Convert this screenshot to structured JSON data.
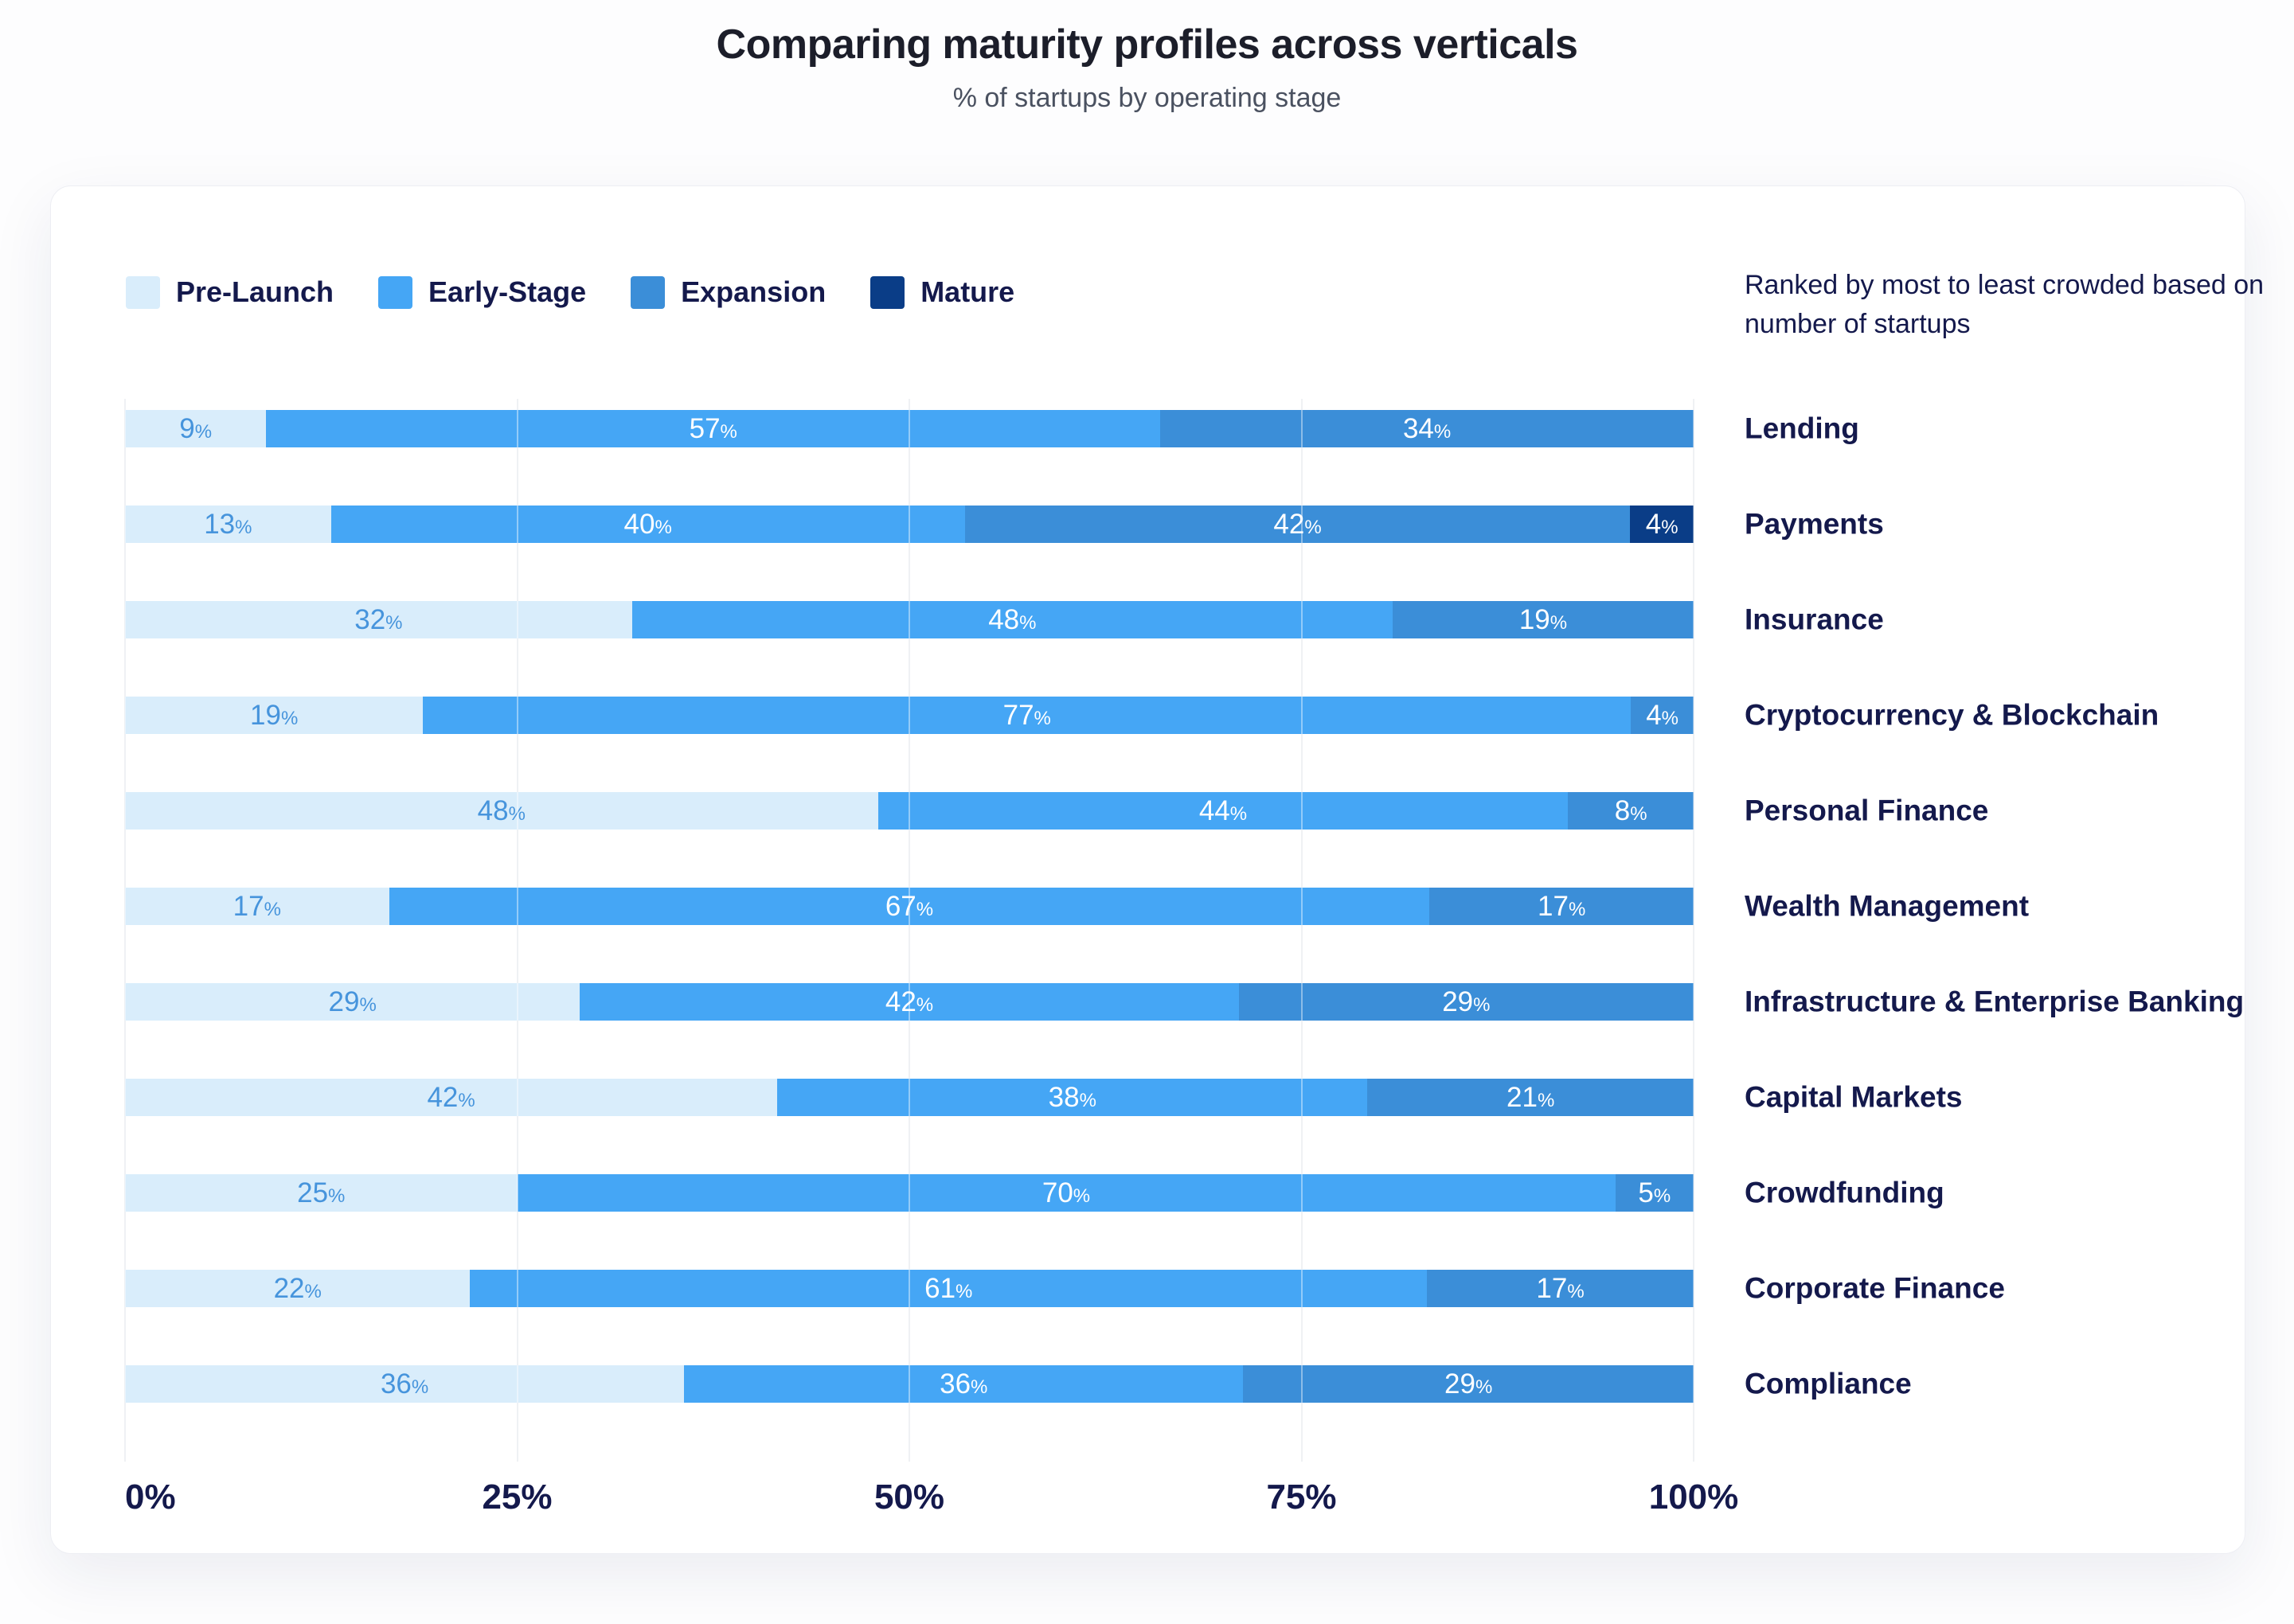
{
  "page": {
    "title": "Comparing maturity profiles across verticals",
    "subtitle": "% of startups by operating stage"
  },
  "note": "Ranked by most to least crowded based on number of startups",
  "colors": {
    "page_background": "#FDFDFE",
    "card_background": "#FFFFFF",
    "navy_text": "#14194C",
    "title_text": "#1C1E2A",
    "subtitle_text": "#4A5160",
    "grid_line": "#E4E7ED",
    "pre_launch_value_text": "#4694DC",
    "value_text_on_dark": "#FFFFFF"
  },
  "x_axis": {
    "ticks": [
      {
        "label": "0%",
        "position": 0
      },
      {
        "label": "25%",
        "position": 25
      },
      {
        "label": "50%",
        "position": 50
      },
      {
        "label": "75%",
        "position": 75
      },
      {
        "label": "100%",
        "position": 100
      }
    ]
  },
  "chart_data": {
    "type": "bar",
    "stacked": true,
    "orientation": "horizontal",
    "title": "Comparing maturity profiles across verticals",
    "subtitle": "% of startups by operating stage",
    "annotation": "Ranked by most to least crowded based on number of startups",
    "value_suffix": "%",
    "xlim": [
      0,
      100
    ],
    "grid": "vertical",
    "legend_position": "top-left",
    "categories": [
      "Lending",
      "Payments",
      "Insurance",
      "Cryptocurrency & Blockchain",
      "Personal Finance",
      "Wealth Management",
      "Infrastructure & Enterprise Banking",
      "Capital Markets",
      "Crowdfunding",
      "Corporate Finance",
      "Compliance"
    ],
    "series": [
      {
        "name": "Pre-Launch",
        "color": "#D9EDFB",
        "label_text_color": "#4694DC",
        "values": [
          9,
          13,
          32,
          19,
          48,
          17,
          29,
          42,
          25,
          22,
          36
        ]
      },
      {
        "name": "Early-Stage",
        "color": "#45A6F5",
        "label_text_color": "#FFFFFF",
        "values": [
          57,
          40,
          48,
          77,
          44,
          67,
          42,
          38,
          70,
          61,
          36
        ]
      },
      {
        "name": "Expansion",
        "color": "#3B8ED8",
        "label_text_color": "#FFFFFF",
        "values": [
          34,
          42,
          19,
          4,
          8,
          17,
          29,
          21,
          5,
          17,
          29
        ]
      },
      {
        "name": "Mature",
        "color": "#0A3D87",
        "label_text_color": "#FFFFFF",
        "values": [
          0,
          4,
          0,
          0,
          0,
          0,
          0,
          0,
          0,
          0,
          0
        ]
      }
    ]
  }
}
